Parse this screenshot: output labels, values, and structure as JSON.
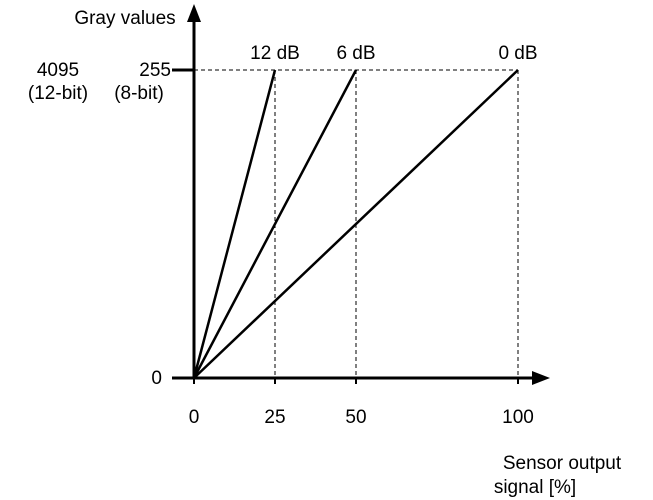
{
  "chart_data": {
    "type": "line",
    "ylabel": "Gray values",
    "xlabel_lines": [
      "Sensor output",
      "signal [%]"
    ],
    "xlim": [
      0,
      100
    ],
    "x_ticks": [
      {
        "value": 0,
        "label": "0"
      },
      {
        "value": 25,
        "label": "25"
      },
      {
        "value": 50,
        "label": "50"
      },
      {
        "value": 100,
        "label": "100"
      }
    ],
    "y_labels": {
      "zero": "0",
      "max_8bit": "255",
      "max_12bit_value": "4095",
      "annotation_12bit": "(12-bit)",
      "annotation_8bit": "(8-bit)"
    },
    "series": [
      {
        "name": "12 dB",
        "x": [
          0,
          25
        ],
        "y": [
          0,
          255
        ]
      },
      {
        "name": "6 dB",
        "x": [
          0,
          50
        ],
        "y": [
          0,
          255
        ]
      },
      {
        "name": "0 dB",
        "x": [
          0,
          100
        ],
        "y": [
          0,
          255
        ]
      }
    ]
  }
}
